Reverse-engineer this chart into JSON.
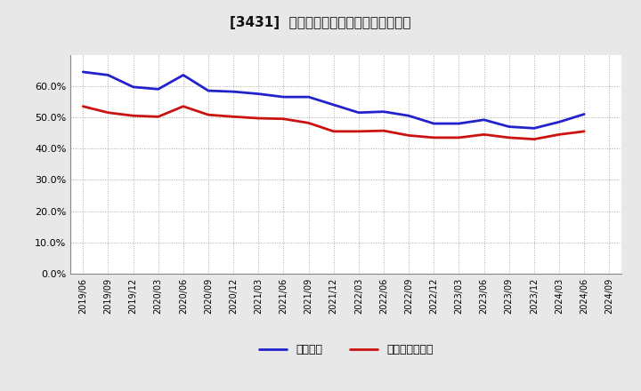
{
  "title": "[3431]  固定比率、固定長期適合率の推移",
  "x_labels": [
    "2019/06",
    "2019/09",
    "2019/12",
    "2020/03",
    "2020/06",
    "2020/09",
    "2020/12",
    "2021/03",
    "2021/06",
    "2021/09",
    "2021/12",
    "2022/03",
    "2022/06",
    "2022/09",
    "2022/12",
    "2023/03",
    "2023/06",
    "2023/09",
    "2023/12",
    "2024/03",
    "2024/06",
    "2024/09"
  ],
  "fixed_ratio": [
    64.5,
    63.5,
    59.7,
    59.0,
    63.5,
    58.5,
    58.2,
    57.5,
    56.5,
    56.5,
    54.0,
    51.5,
    51.8,
    50.5,
    48.0,
    48.0,
    49.2,
    47.0,
    46.5,
    48.5,
    51.0,
    null
  ],
  "fixed_long_ratio": [
    53.5,
    51.5,
    50.5,
    50.2,
    53.5,
    50.8,
    50.2,
    49.7,
    49.5,
    48.2,
    45.5,
    45.5,
    45.7,
    44.2,
    43.5,
    43.5,
    44.5,
    43.5,
    43.0,
    44.5,
    45.5,
    null
  ],
  "ylim": [
    0.0,
    0.7
  ],
  "yticks": [
    0.0,
    0.1,
    0.2,
    0.3,
    0.4,
    0.5,
    0.6
  ],
  "blue_color": "#2222cc",
  "red_color": "#cc1111",
  "bg_color": "#e8e8e8",
  "plot_bg": "#ffffff",
  "grid_color": "#aaaaaa",
  "legend_blue": "固定比率",
  "legend_red": "固定長期適合率",
  "line_width": 2.0
}
